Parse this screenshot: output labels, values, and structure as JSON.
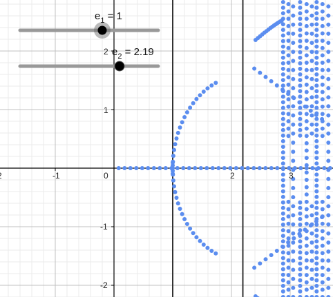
{
  "graphics_view": {
    "x_tick_labels": [
      "2",
      "-1",
      "0",
      "2",
      "3"
    ],
    "y_tick_labels": [
      "1",
      "-1",
      "-2"
    ],
    "stray_tick_label": "2",
    "vertical_line_values": [
      1,
      2.19
    ]
  },
  "sliders": [
    {
      "name_base": "e",
      "name_sub": "1",
      "equals": " = ",
      "value_text": "1",
      "value": 1,
      "selected": true
    },
    {
      "name_base": "e",
      "name_sub": "2",
      "equals": " = ",
      "value_text": "2.19",
      "value": 2.19,
      "selected": false
    }
  ],
  "colors": {
    "point_color": "#5b8def",
    "slider_line": "#999999",
    "slider_thumb": "#000000",
    "selection_halo": "#666666",
    "major_grid": "#c0c0c0",
    "minor_grid": "#ebebeb",
    "axis": "#000000",
    "vertical_line": "#333333"
  }
}
